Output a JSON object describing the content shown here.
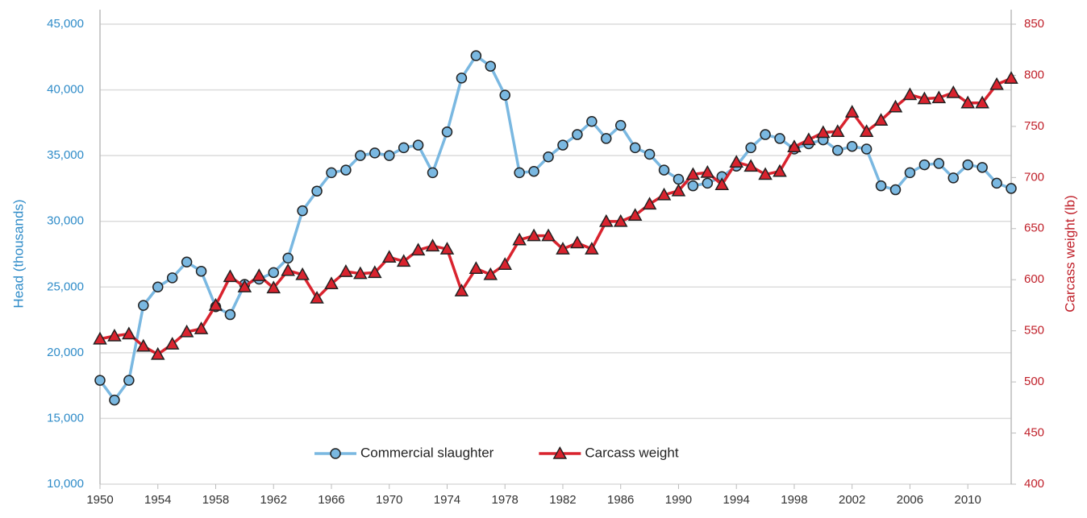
{
  "chart_data": {
    "type": "line",
    "y_label": "Head (thousands)",
    "y2_label": "Carcass weight (lb)",
    "x": [
      1950,
      1951,
      1952,
      1953,
      1954,
      1955,
      1956,
      1957,
      1958,
      1959,
      1960,
      1961,
      1962,
      1963,
      1964,
      1965,
      1966,
      1967,
      1968,
      1969,
      1970,
      1971,
      1972,
      1973,
      1974,
      1975,
      1976,
      1977,
      1978,
      1979,
      1980,
      1981,
      1982,
      1983,
      1984,
      1985,
      1986,
      1987,
      1988,
      1989,
      1990,
      1991,
      1992,
      1993,
      1994,
      1995,
      1996,
      1997,
      1998,
      1999,
      2000,
      2001,
      2002,
      2003,
      2004,
      2005,
      2006,
      2007,
      2008,
      2009,
      2010,
      2011,
      2012,
      2013
    ],
    "xlim": [
      1950,
      2013
    ],
    "xticks": [
      1950,
      1954,
      1958,
      1962,
      1966,
      1970,
      1974,
      1978,
      1982,
      1986,
      1990,
      1994,
      1998,
      2002,
      2006,
      2010
    ],
    "ylim": [
      10000,
      45000
    ],
    "yticks": [
      {
        "value": 10000,
        "label": "10,000"
      },
      {
        "value": 15000,
        "label": "15,000"
      },
      {
        "value": 20000,
        "label": "20,000"
      },
      {
        "value": 25000,
        "label": "25,000"
      },
      {
        "value": 30000,
        "label": "30,000"
      },
      {
        "value": 35000,
        "label": "35,000"
      },
      {
        "value": 40000,
        "label": "40,000"
      },
      {
        "value": 45000,
        "label": "45,000"
      }
    ],
    "y2lim": [
      400,
      850
    ],
    "y2ticks": [
      400,
      450,
      500,
      550,
      600,
      650,
      700,
      750,
      800,
      850
    ],
    "grid": true,
    "legend": "bottom",
    "series": [
      {
        "name": "Commercial slaughter",
        "color": "#7ab8e1",
        "marker": "circle",
        "values": [
          17900,
          16400,
          17900,
          23600,
          25000,
          25700,
          26900,
          26200,
          23500,
          22900,
          25200,
          25600,
          26100,
          27200,
          30800,
          32300,
          33700,
          33900,
          35000,
          35200,
          35000,
          35600,
          35800,
          33700,
          36800,
          40900,
          42600,
          41800,
          39600,
          33700,
          33800,
          34900,
          35800,
          36600,
          37600,
          36300,
          37300,
          35600,
          35100,
          33900,
          33200,
          32700,
          32900,
          33400,
          34200,
          35600,
          36600,
          36300,
          35500,
          35900,
          36200,
          35400,
          35700,
          35500,
          32700,
          32400,
          33700,
          34300,
          34400,
          33300,
          34300,
          34100,
          32900,
          32500
        ]
      },
      {
        "name": "Carcass weight",
        "color": "#d9232e",
        "marker": "triangle",
        "axis": "y2",
        "values": [
          542,
          545,
          547,
          535,
          527,
          537,
          549,
          552,
          575,
          603,
          593,
          604,
          592,
          609,
          605,
          582,
          596,
          608,
          606,
          607,
          622,
          618,
          629,
          633,
          630,
          589,
          611,
          605,
          615,
          639,
          643,
          643,
          630,
          636,
          630,
          657,
          657,
          663,
          674,
          683,
          687,
          703,
          705,
          693,
          715,
          711,
          703,
          706,
          730,
          737,
          744,
          745,
          764,
          745,
          756,
          769,
          781,
          777,
          778,
          783,
          773,
          773,
          791,
          797
        ]
      }
    ]
  }
}
